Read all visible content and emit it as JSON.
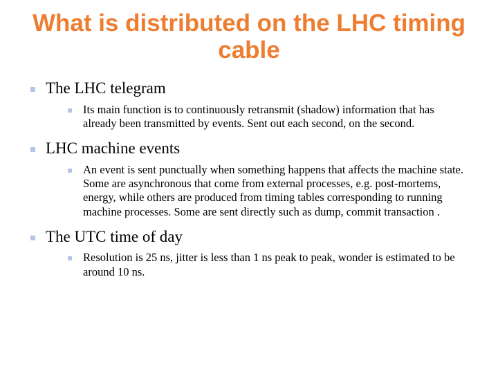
{
  "colors": {
    "title": "#ed7d31",
    "bullet": "#b4c5e6",
    "text": "#000000",
    "background": "#ffffff"
  },
  "typography": {
    "title_font": "Arial",
    "title_fontsize_pt": 35,
    "title_weight": "bold",
    "body_font": "Times New Roman",
    "lvl1_fontsize_pt": 23,
    "lvl2_fontsize_pt": 16.5
  },
  "title": "What is distributed on the LHC timing cable",
  "items": [
    {
      "label": "The LHC telegram",
      "sub": [
        "Its main function is to continuously retransmit (shadow) information that has already been transmitted by events. Sent out each second, on the second."
      ]
    },
    {
      "label": "LHC machine events",
      "sub": [
        "An event is sent punctually when something happens that affects the machine state. Some are asynchronous that come from external processes, e.g. post-mortems, energy, while others are produced from timing tables corresponding to running machine processes. Some are sent directly such as dump, commit transaction ."
      ]
    },
    {
      "label": "The UTC time of day",
      "sub": [
        "Resolution is 25 ns, jitter is less than 1 ns peak to peak, wonder is estimated to be around 10 ns."
      ]
    }
  ]
}
